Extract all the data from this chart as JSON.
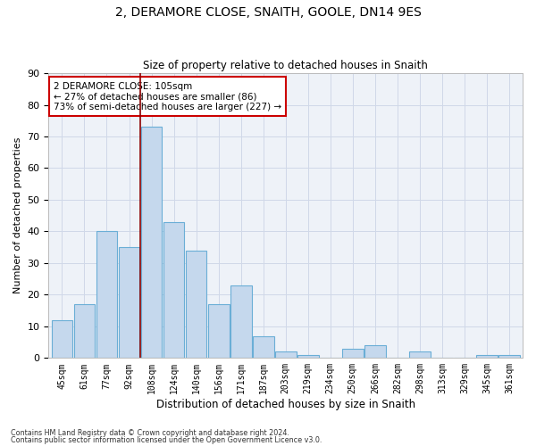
{
  "title1": "2, DERAMORE CLOSE, SNAITH, GOOLE, DN14 9ES",
  "title2": "Size of property relative to detached houses in Snaith",
  "xlabel": "Distribution of detached houses by size in Snaith",
  "ylabel": "Number of detached properties",
  "categories": [
    "45sqm",
    "61sqm",
    "77sqm",
    "92sqm",
    "108sqm",
    "124sqm",
    "140sqm",
    "156sqm",
    "171sqm",
    "187sqm",
    "203sqm",
    "219sqm",
    "234sqm",
    "250sqm",
    "266sqm",
    "282sqm",
    "298sqm",
    "313sqm",
    "329sqm",
    "345sqm",
    "361sqm"
  ],
  "values": [
    12,
    17,
    40,
    35,
    73,
    43,
    34,
    17,
    23,
    7,
    2,
    1,
    0,
    3,
    4,
    0,
    2,
    0,
    0,
    1,
    1
  ],
  "bar_color": "#c5d8ed",
  "bar_edge_color": "#6aaed6",
  "vline_color": "#8b0000",
  "annotation_text": "2 DERAMORE CLOSE: 105sqm\n← 27% of detached houses are smaller (86)\n73% of semi-detached houses are larger (227) →",
  "annotation_box_color": "#ffffff",
  "annotation_box_edge": "#cc0000",
  "ylim": [
    0,
    90
  ],
  "yticks": [
    0,
    10,
    20,
    30,
    40,
    50,
    60,
    70,
    80,
    90
  ],
  "grid_color": "#d0d8e8",
  "background_color": "#eef2f8",
  "footnote1": "Contains HM Land Registry data © Crown copyright and database right 2024.",
  "footnote2": "Contains public sector information licensed under the Open Government Licence v3.0."
}
